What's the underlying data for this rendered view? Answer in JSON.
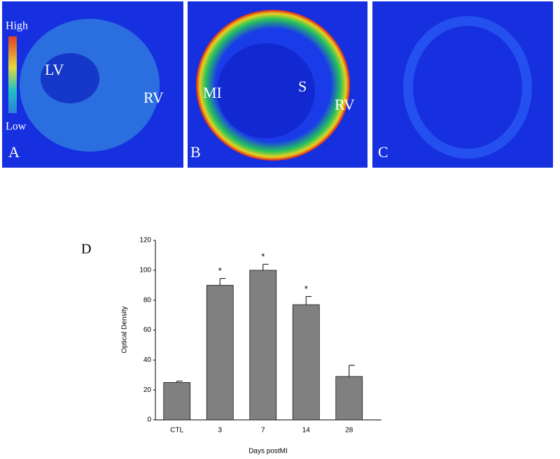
{
  "panels": [
    {
      "label": "A",
      "texts": [
        "High",
        "Low",
        "LV",
        "RV"
      ]
    },
    {
      "label": "B",
      "texts": [
        "MI",
        "S",
        "RV"
      ]
    },
    {
      "label": "C"
    }
  ],
  "chart_data": {
    "type": "bar",
    "panel_label": "D",
    "x_label": "Days postMI",
    "y_label": "Optical Density",
    "categories": [
      "CTL",
      "3",
      "7",
      "14",
      "28"
    ],
    "values": [
      25,
      90,
      100,
      77,
      29
    ],
    "errors": [
      1,
      4.5,
      4,
      5.5,
      7.5
    ],
    "significance": [
      null,
      "*",
      "*",
      "*",
      null
    ],
    "color": "#808080",
    "ylim": [
      0,
      120
    ],
    "yticks": [
      0,
      20,
      40,
      60,
      80,
      100,
      120
    ]
  }
}
